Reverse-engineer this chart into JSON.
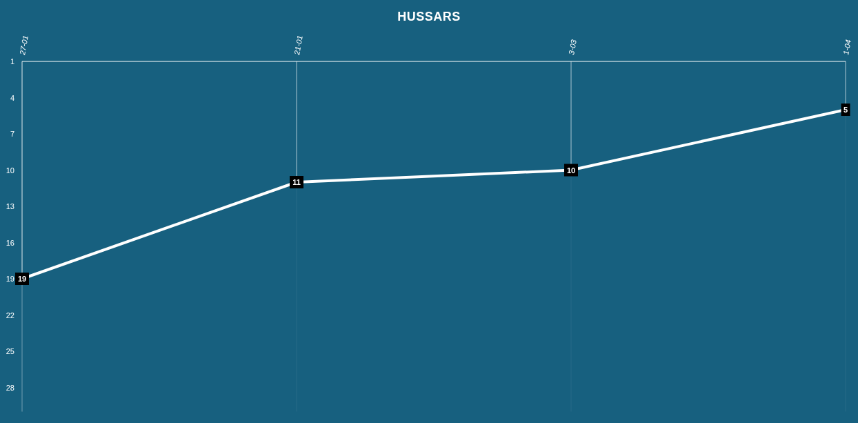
{
  "chart_data": {
    "type": "line",
    "title": "HUSSARS",
    "categories": [
      "27-01",
      "21-01",
      "3-03",
      "1-04"
    ],
    "series": [
      {
        "color": "#ffffff",
        "values": [
          19,
          11,
          10,
          5
        ]
      }
    ],
    "ylim": [
      30,
      1
    ],
    "yticks": [
      1,
      4,
      7,
      10,
      13,
      16,
      19,
      22,
      25,
      28
    ],
    "grid": "x",
    "data_labels": true,
    "marker": "square",
    "line_style": "solid"
  }
}
